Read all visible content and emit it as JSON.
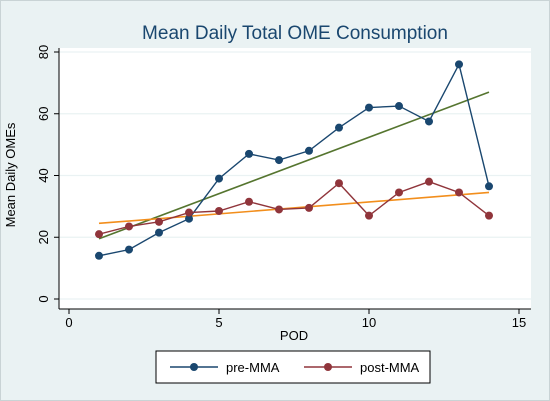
{
  "chart_data": {
    "type": "line",
    "title": "Mean Daily Total OME Consumption",
    "xlabel": "POD",
    "ylabel": "Mean Daily OMEs",
    "xlim": [
      0,
      15
    ],
    "ylim": [
      0,
      80
    ],
    "xticks": [
      0,
      5,
      10,
      15
    ],
    "yticks": [
      0,
      20,
      40,
      60,
      80
    ],
    "x_tick_labels": [
      "0",
      "5",
      "10",
      "15"
    ],
    "y_tick_labels": [
      "0",
      "20",
      "40",
      "60",
      "80"
    ],
    "grid": "horizontal",
    "legend_position": "bottom",
    "series": [
      {
        "name": "pre-MMA",
        "color": "#1a476f",
        "marker": "circle",
        "x": [
          1,
          2,
          3,
          4,
          5,
          6,
          7,
          8,
          9,
          10,
          11,
          12,
          13,
          14
        ],
        "values": [
          14,
          16,
          21.5,
          26,
          39,
          47,
          45,
          48,
          55.5,
          62,
          62.5,
          57.5,
          76,
          36.5
        ]
      },
      {
        "name": "post-MMA",
        "color": "#90353b",
        "marker": "circle",
        "x": [
          1,
          2,
          3,
          4,
          5,
          6,
          7,
          8,
          9,
          10,
          11,
          12,
          13,
          14
        ],
        "values": [
          21,
          23.5,
          25,
          28,
          28.5,
          31.5,
          29,
          29.5,
          37.5,
          27,
          34.5,
          38,
          34.5,
          27
        ]
      }
    ],
    "trendlines": [
      {
        "color": "#55752f",
        "x": [
          1,
          14
        ],
        "values": [
          19.5,
          67
        ]
      },
      {
        "color": "#f28e1c",
        "x": [
          1,
          14
        ],
        "values": [
          24.5,
          34.5
        ]
      }
    ]
  }
}
